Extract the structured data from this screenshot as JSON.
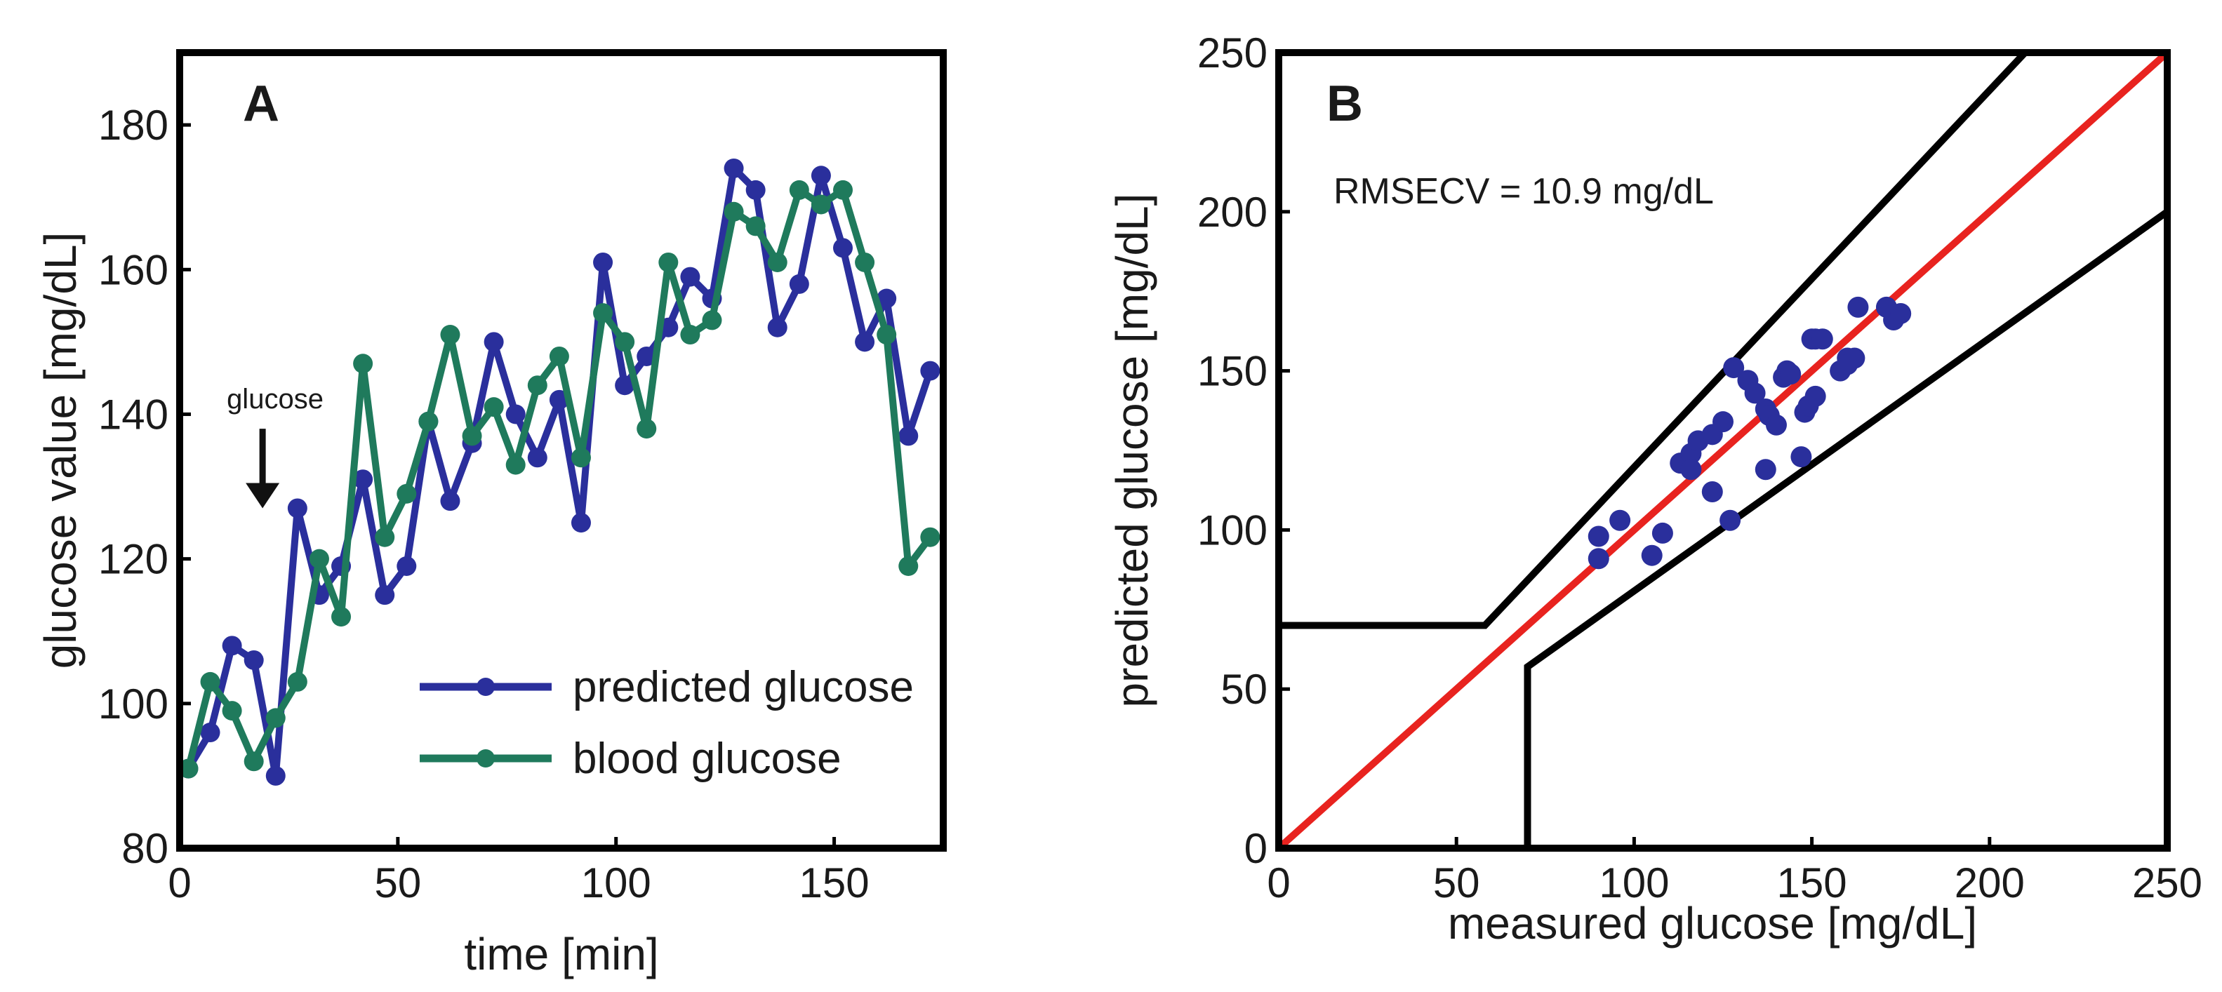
{
  "chart_data": [
    {
      "panel": "A",
      "type": "line",
      "xlabel": "time [min]",
      "ylabel": "glucose value [mg/dL]",
      "xlim": [
        0,
        175
      ],
      "ylim": [
        80,
        190
      ],
      "xticks": [
        0,
        50,
        100,
        150
      ],
      "yticks": [
        80,
        100,
        120,
        140,
        160,
        180
      ],
      "grid": false,
      "legend_position": "bottom-right",
      "annotation": {
        "text": "glucose",
        "x": 19,
        "arrow_from": 138,
        "arrow_to": 127
      },
      "series": [
        {
          "name": "predicted glucose",
          "color": "#2a2f9c",
          "x": [
            2,
            7,
            12,
            17,
            22,
            27,
            32,
            37,
            42,
            47,
            52,
            57,
            62,
            67,
            72,
            77,
            82,
            87,
            92,
            97,
            102,
            107,
            112,
            117,
            122,
            127,
            132,
            137,
            142,
            147,
            152,
            157,
            162,
            167,
            172
          ],
          "y": [
            91,
            96,
            108,
            106,
            90,
            127,
            115,
            119,
            131,
            115,
            119,
            139,
            128,
            136,
            150,
            140,
            134,
            142,
            125,
            161,
            144,
            148,
            152,
            159,
            156,
            174,
            171,
            152,
            158,
            173,
            163,
            150,
            156,
            137,
            146
          ]
        },
        {
          "name": "blood glucose",
          "color": "#1f7a5c",
          "x": [
            2,
            7,
            12,
            17,
            22,
            27,
            32,
            37,
            42,
            47,
            52,
            57,
            62,
            67,
            72,
            77,
            82,
            87,
            92,
            97,
            102,
            107,
            112,
            117,
            122,
            127,
            132,
            137,
            142,
            147,
            152,
            157,
            162,
            167,
            172
          ],
          "y": [
            91,
            103,
            99,
            92,
            98,
            103,
            120,
            112,
            147,
            123,
            129,
            139,
            151,
            137,
            141,
            133,
            144,
            148,
            134,
            154,
            150,
            138,
            161,
            151,
            153,
            168,
            166,
            161,
            171,
            169,
            171,
            161,
            151,
            119,
            123
          ]
        }
      ]
    },
    {
      "panel": "B",
      "type": "scatter",
      "xlabel": "measured glucose [mg/dL]",
      "ylabel": "predicted glucose [mg/dL]",
      "xlim": [
        0,
        250
      ],
      "ylim": [
        0,
        250
      ],
      "xticks": [
        0,
        50,
        100,
        150,
        200,
        250
      ],
      "yticks": [
        0,
        50,
        100,
        150,
        200,
        250
      ],
      "grid": false,
      "annotation": "RMSECV = 10.9 mg/dL",
      "point_color": "#2a2f9c",
      "identity_line_color": "#e8231f",
      "boundary_color": "#000000",
      "boundaries": [
        {
          "x": [
            0,
            58,
            210
          ],
          "y": [
            70,
            70,
            250
          ]
        },
        {
          "x": [
            70,
            70,
            250
          ],
          "y": [
            0,
            57,
            200
          ]
        }
      ],
      "identity_line": {
        "x": [
          0,
          250
        ],
        "y": [
          0,
          250
        ]
      },
      "points": {
        "x": [
          90,
          90,
          96,
          105,
          108,
          113,
          116,
          116,
          118,
          122,
          122,
          125,
          127,
          128,
          132,
          134,
          137,
          137,
          138,
          140,
          142,
          143,
          144,
          147,
          148,
          149,
          150,
          151,
          151,
          153,
          158,
          160,
          160,
          162,
          163,
          171,
          173,
          175
        ],
        "y": [
          98,
          91,
          103,
          92,
          99,
          121,
          124,
          119,
          128,
          112,
          130,
          134,
          103,
          151,
          147,
          143,
          138,
          119,
          136,
          133,
          148,
          150,
          149,
          123,
          137,
          139,
          160,
          142,
          160,
          160,
          150,
          154,
          152,
          154,
          170,
          170,
          166,
          168
        ]
      }
    }
  ]
}
